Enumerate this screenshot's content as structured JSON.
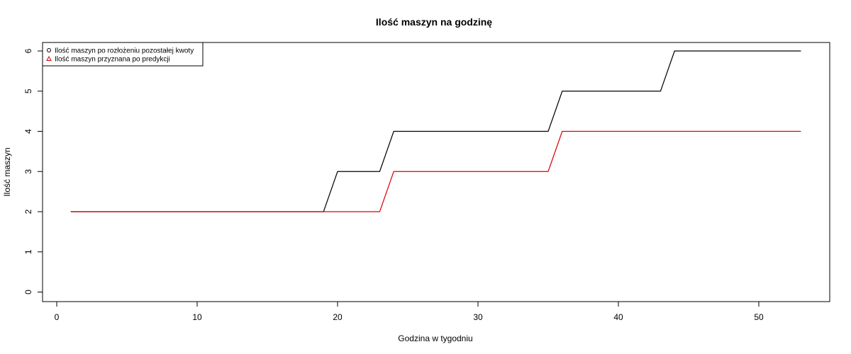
{
  "chart_data": {
    "type": "line",
    "title": "Ilość maszyn na godzinę",
    "xlabel": "Godzina w tygodniu",
    "ylabel": "Ilość maszyn",
    "xlim": [
      0,
      55
    ],
    "ylim": [
      0,
      6
    ],
    "x_ticks": [
      0,
      10,
      20,
      30,
      40,
      50
    ],
    "y_ticks": [
      0,
      1,
      2,
      3,
      4,
      5,
      6
    ],
    "grid": false,
    "legend_position": "top-left",
    "x": [
      1,
      2,
      3,
      4,
      5,
      6,
      7,
      8,
      9,
      10,
      11,
      12,
      13,
      14,
      15,
      16,
      17,
      18,
      19,
      20,
      21,
      22,
      23,
      24,
      25,
      26,
      27,
      28,
      29,
      30,
      31,
      32,
      33,
      34,
      35,
      36,
      37,
      38,
      39,
      40,
      41,
      42,
      43,
      44,
      45,
      46,
      47,
      48,
      49,
      50,
      51,
      52,
      53
    ],
    "series": [
      {
        "name": "Ilość maszyn po rozłożeniu pozostałej kwoty",
        "color": "#000000",
        "legend_marker": "circle",
        "values": [
          2,
          2,
          2,
          2,
          2,
          2,
          2,
          2,
          2,
          2,
          2,
          2,
          2,
          2,
          2,
          2,
          2,
          2,
          2,
          3,
          3,
          3,
          3,
          4,
          4,
          4,
          4,
          4,
          4,
          4,
          4,
          4,
          4,
          4,
          4,
          5,
          5,
          5,
          5,
          5,
          5,
          5,
          5,
          6,
          6,
          6,
          6,
          6,
          6,
          6,
          6,
          6,
          6
        ]
      },
      {
        "name": "Ilość maszyn przyznana po predykcji",
        "color": "#dd0000",
        "legend_marker": "triangle",
        "values": [
          2,
          2,
          2,
          2,
          2,
          2,
          2,
          2,
          2,
          2,
          2,
          2,
          2,
          2,
          2,
          2,
          2,
          2,
          2,
          2,
          2,
          2,
          2,
          3,
          3,
          3,
          3,
          3,
          3,
          3,
          3,
          3,
          3,
          3,
          3,
          4,
          4,
          4,
          4,
          4,
          4,
          4,
          4,
          4,
          4,
          4,
          4,
          4,
          4,
          4,
          4,
          4,
          4
        ]
      }
    ]
  }
}
